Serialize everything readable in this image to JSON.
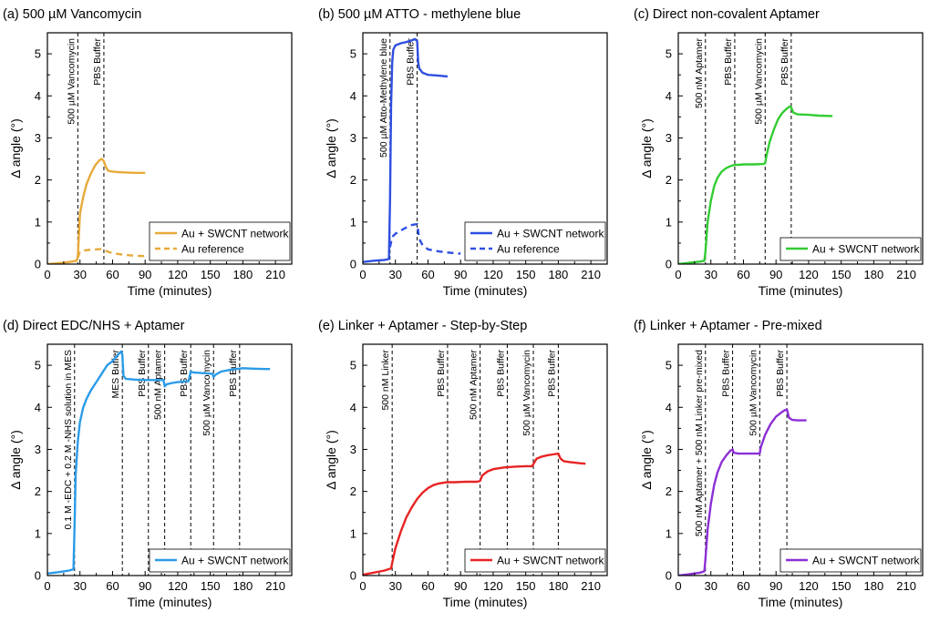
{
  "colors": {
    "orange": "#e8a93a",
    "blue": "#2f4fe0",
    "green": "#33cc33",
    "lightblue": "#2b9be8",
    "red": "#e82323",
    "purple": "#8c2fd6"
  },
  "chart_data": [
    {
      "id": "a",
      "type": "line",
      "title": "(a) 500 µM Vancomycin",
      "xlabel": "Time (minutes)",
      "ylabel": "Δ angle (°)",
      "xlim": [
        0,
        225
      ],
      "ylim": [
        0,
        5.5
      ],
      "xticks": [
        0,
        30,
        60,
        90,
        120,
        150,
        180,
        210
      ],
      "yticks": [
        0,
        1,
        2,
        3,
        4,
        5
      ],
      "legend_position": "lower-right",
      "events": [
        {
          "x": 28,
          "label": "500 µM Vancomycin"
        },
        {
          "x": 52,
          "label": "PBS Buffer"
        }
      ],
      "series": [
        {
          "name": "Au + SWCNT network",
          "color": "orange",
          "dash": false,
          "x": [
            0,
            10,
            20,
            27,
            28,
            30,
            33,
            36,
            40,
            44,
            48,
            50,
            52,
            54,
            56,
            60,
            65,
            70,
            80,
            90
          ],
          "y": [
            0,
            0.02,
            0.05,
            0.08,
            0.2,
            1.2,
            1.6,
            1.9,
            2.15,
            2.35,
            2.47,
            2.5,
            2.45,
            2.3,
            2.22,
            2.2,
            2.19,
            2.18,
            2.17,
            2.17
          ]
        },
        {
          "name": "Au reference",
          "color": "orange",
          "dash": true,
          "x": [
            28,
            30,
            35,
            40,
            45,
            50,
            52,
            55,
            60,
            70,
            80,
            90
          ],
          "y": [
            0.15,
            0.3,
            0.33,
            0.34,
            0.35,
            0.36,
            0.34,
            0.3,
            0.26,
            0.22,
            0.2,
            0.19
          ]
        }
      ]
    },
    {
      "id": "b",
      "type": "line",
      "title": "(b) 500 µM ATTO - methylene blue",
      "xlabel": "Time (minutes)",
      "ylabel": "Δ angle (°)",
      "xlim": [
        0,
        225
      ],
      "ylim": [
        0,
        5.5
      ],
      "xticks": [
        0,
        30,
        60,
        90,
        120,
        150,
        180,
        210
      ],
      "yticks": [
        0,
        1,
        2,
        3,
        4,
        5
      ],
      "legend_position": "lower-right",
      "events": [
        {
          "x": 25,
          "label": "500 µM Atto-Methylene blue"
        },
        {
          "x": 50,
          "label": "PBS Buffer"
        }
      ],
      "series": [
        {
          "name": "Au + SWCNT network",
          "color": "blue",
          "dash": false,
          "x": [
            0,
            10,
            20,
            24,
            25,
            26,
            27,
            28,
            30,
            35,
            40,
            45,
            48,
            50,
            51,
            52,
            55,
            60,
            70,
            78
          ],
          "y": [
            0.05,
            0.08,
            0.1,
            0.12,
            1.5,
            3.8,
            4.8,
            5.1,
            5.2,
            5.25,
            5.28,
            5.32,
            5.35,
            5.3,
            4.8,
            4.65,
            4.55,
            4.5,
            4.48,
            4.46
          ]
        },
        {
          "name": "Au reference",
          "color": "blue",
          "dash": true,
          "x": [
            25,
            27,
            30,
            35,
            40,
            45,
            50,
            52,
            55,
            60,
            70,
            80,
            90
          ],
          "y": [
            0.4,
            0.65,
            0.72,
            0.8,
            0.87,
            0.93,
            0.95,
            0.6,
            0.45,
            0.35,
            0.3,
            0.27,
            0.25
          ]
        }
      ]
    },
    {
      "id": "c",
      "type": "line",
      "title": "(c) Direct non-covalent Aptamer",
      "xlabel": "Time (minutes)",
      "ylabel": "Δ angle (°)",
      "xlim": [
        0,
        225
      ],
      "ylim": [
        0,
        5.5
      ],
      "xticks": [
        0,
        30,
        60,
        90,
        120,
        150,
        180,
        210
      ],
      "yticks": [
        0,
        1,
        2,
        3,
        4,
        5
      ],
      "legend_position": "lower-right",
      "events": [
        {
          "x": 25,
          "label": "500 nM Aptamer"
        },
        {
          "x": 52,
          "label": "PBS Buffer"
        },
        {
          "x": 80,
          "label": "500 µM Vancomycin"
        },
        {
          "x": 104,
          "label": "PBS Buffer"
        }
      ],
      "series": [
        {
          "name": "Au + SWCNT network",
          "color": "green",
          "dash": false,
          "x": [
            0,
            10,
            20,
            24,
            25,
            27,
            30,
            33,
            36,
            40,
            44,
            48,
            52,
            56,
            60,
            70,
            78,
            80,
            81,
            84,
            88,
            92,
            96,
            100,
            103,
            104,
            106,
            110,
            120,
            130,
            142
          ],
          "y": [
            0,
            0.03,
            0.06,
            0.08,
            0.3,
            1.0,
            1.5,
            1.85,
            2.05,
            2.2,
            2.28,
            2.33,
            2.36,
            2.36,
            2.37,
            2.37,
            2.38,
            2.4,
            2.55,
            2.9,
            3.2,
            3.45,
            3.6,
            3.7,
            3.75,
            3.72,
            3.6,
            3.56,
            3.55,
            3.53,
            3.52
          ]
        }
      ]
    },
    {
      "id": "d",
      "type": "line",
      "title": "(d) Direct EDC/NHS + Aptamer",
      "xlabel": "Time (minutes)",
      "ylabel": "Δ angle (°)",
      "xlim": [
        0,
        225
      ],
      "ylim": [
        0,
        5.5
      ],
      "xticks": [
        0,
        30,
        60,
        90,
        120,
        150,
        180,
        210
      ],
      "yticks": [
        0,
        1,
        2,
        3,
        4,
        5
      ],
      "legend_position": "lower-right",
      "events": [
        {
          "x": 25,
          "label": "0.1 M -EDC + 0.2 M -NHS solution in MES"
        },
        {
          "x": 69,
          "label": "MES Buffer"
        },
        {
          "x": 93,
          "label": "PBS Buffer"
        },
        {
          "x": 108,
          "label": "500 nM Aptamer"
        },
        {
          "x": 132,
          "label": "PBS Buffer"
        },
        {
          "x": 153,
          "label": "500 µM Vancomycin"
        },
        {
          "x": 177,
          "label": "PBS Buffer"
        }
      ],
      "series": [
        {
          "name": "Au + SWCNT network",
          "color": "lightblue",
          "dash": false,
          "x": [
            0,
            10,
            20,
            24,
            25,
            26,
            28,
            30,
            33,
            36,
            40,
            45,
            50,
            55,
            60,
            65,
            68,
            69,
            70,
            72,
            80,
            90,
            100,
            107,
            108,
            110,
            115,
            120,
            130,
            132,
            134,
            140,
            150,
            152,
            153,
            155,
            160,
            170,
            177,
            180,
            190,
            200,
            205
          ],
          "y": [
            0.05,
            0.08,
            0.12,
            0.15,
            1.2,
            2.4,
            3.2,
            3.65,
            4.0,
            4.2,
            4.4,
            4.6,
            4.8,
            5.0,
            5.1,
            5.25,
            5.33,
            5.25,
            4.75,
            4.68,
            4.66,
            4.65,
            4.65,
            4.65,
            4.5,
            4.55,
            4.58,
            4.6,
            4.62,
            4.85,
            4.83,
            4.82,
            4.8,
            4.8,
            4.72,
            4.78,
            4.85,
            4.9,
            4.92,
            4.93,
            4.92,
            4.91,
            4.91
          ]
        }
      ]
    },
    {
      "id": "e",
      "type": "line",
      "title": "(e) Linker + Aptamer - Step-by-Step",
      "xlabel": "Time (minutes)",
      "ylabel": "Δ angle (°)",
      "xlim": [
        0,
        225
      ],
      "ylim": [
        0,
        5.5
      ],
      "xticks": [
        0,
        30,
        60,
        90,
        120,
        150,
        180,
        210
      ],
      "yticks": [
        0,
        1,
        2,
        3,
        4,
        5
      ],
      "legend_position": "lower-right",
      "events": [
        {
          "x": 27,
          "label": "500 nM Linker"
        },
        {
          "x": 78,
          "label": "PBS Buffer"
        },
        {
          "x": 108,
          "label": "500 nM Aptamer"
        },
        {
          "x": 133,
          "label": "PBS Buffer"
        },
        {
          "x": 157,
          "label": "500 µM Vancomycin"
        },
        {
          "x": 180,
          "label": "PBS Buffer"
        }
      ],
      "series": [
        {
          "name": "Au + SWCNT network",
          "color": "red",
          "dash": false,
          "x": [
            0,
            10,
            20,
            26,
            27,
            30,
            35,
            40,
            45,
            50,
            55,
            60,
            65,
            70,
            75,
            78,
            85,
            95,
            105,
            108,
            110,
            115,
            120,
            130,
            140,
            150,
            156,
            157,
            160,
            165,
            170,
            175,
            180,
            182,
            185,
            190,
            200,
            205
          ],
          "y": [
            0.02,
            0.07,
            0.12,
            0.17,
            0.3,
            0.65,
            1.05,
            1.38,
            1.62,
            1.82,
            1.97,
            2.08,
            2.15,
            2.19,
            2.21,
            2.22,
            2.22,
            2.23,
            2.23,
            2.25,
            2.38,
            2.48,
            2.53,
            2.57,
            2.59,
            2.6,
            2.6,
            2.65,
            2.78,
            2.83,
            2.86,
            2.88,
            2.9,
            2.78,
            2.72,
            2.7,
            2.67,
            2.66
          ]
        }
      ]
    },
    {
      "id": "f",
      "type": "line",
      "title": "(f) Linker + Aptamer - Pre-mixed",
      "xlabel": "Time (minutes)",
      "ylabel": "Δ angle (°)",
      "xlim": [
        0,
        225
      ],
      "ylim": [
        0,
        5.5
      ],
      "xticks": [
        0,
        30,
        60,
        90,
        120,
        150,
        180,
        210
      ],
      "yticks": [
        0,
        1,
        2,
        3,
        4,
        5
      ],
      "legend_position": "lower-right",
      "events": [
        {
          "x": 25,
          "label": "500 nM Aptamer + 500 nM Linker pre-mixed"
        },
        {
          "x": 50,
          "label": "PBS Buffer"
        },
        {
          "x": 75,
          "label": "500 µM Vancomycin"
        },
        {
          "x": 100,
          "label": "PBS Buffer"
        }
      ],
      "series": [
        {
          "name": "Au + SWCNT network",
          "color": "purple",
          "dash": false,
          "x": [
            0,
            10,
            20,
            24,
            25,
            27,
            30,
            33,
            36,
            40,
            44,
            48,
            50,
            51,
            55,
            60,
            70,
            75,
            76,
            80,
            85,
            90,
            95,
            98,
            100,
            102,
            105,
            110,
            118
          ],
          "y": [
            0,
            0.03,
            0.07,
            0.1,
            0.4,
            1.1,
            1.7,
            2.15,
            2.45,
            2.7,
            2.85,
            2.97,
            3.0,
            2.92,
            2.9,
            2.9,
            2.9,
            2.9,
            3.05,
            3.35,
            3.6,
            3.78,
            3.88,
            3.93,
            3.95,
            3.75,
            3.7,
            3.69,
            3.69
          ]
        }
      ]
    }
  ]
}
